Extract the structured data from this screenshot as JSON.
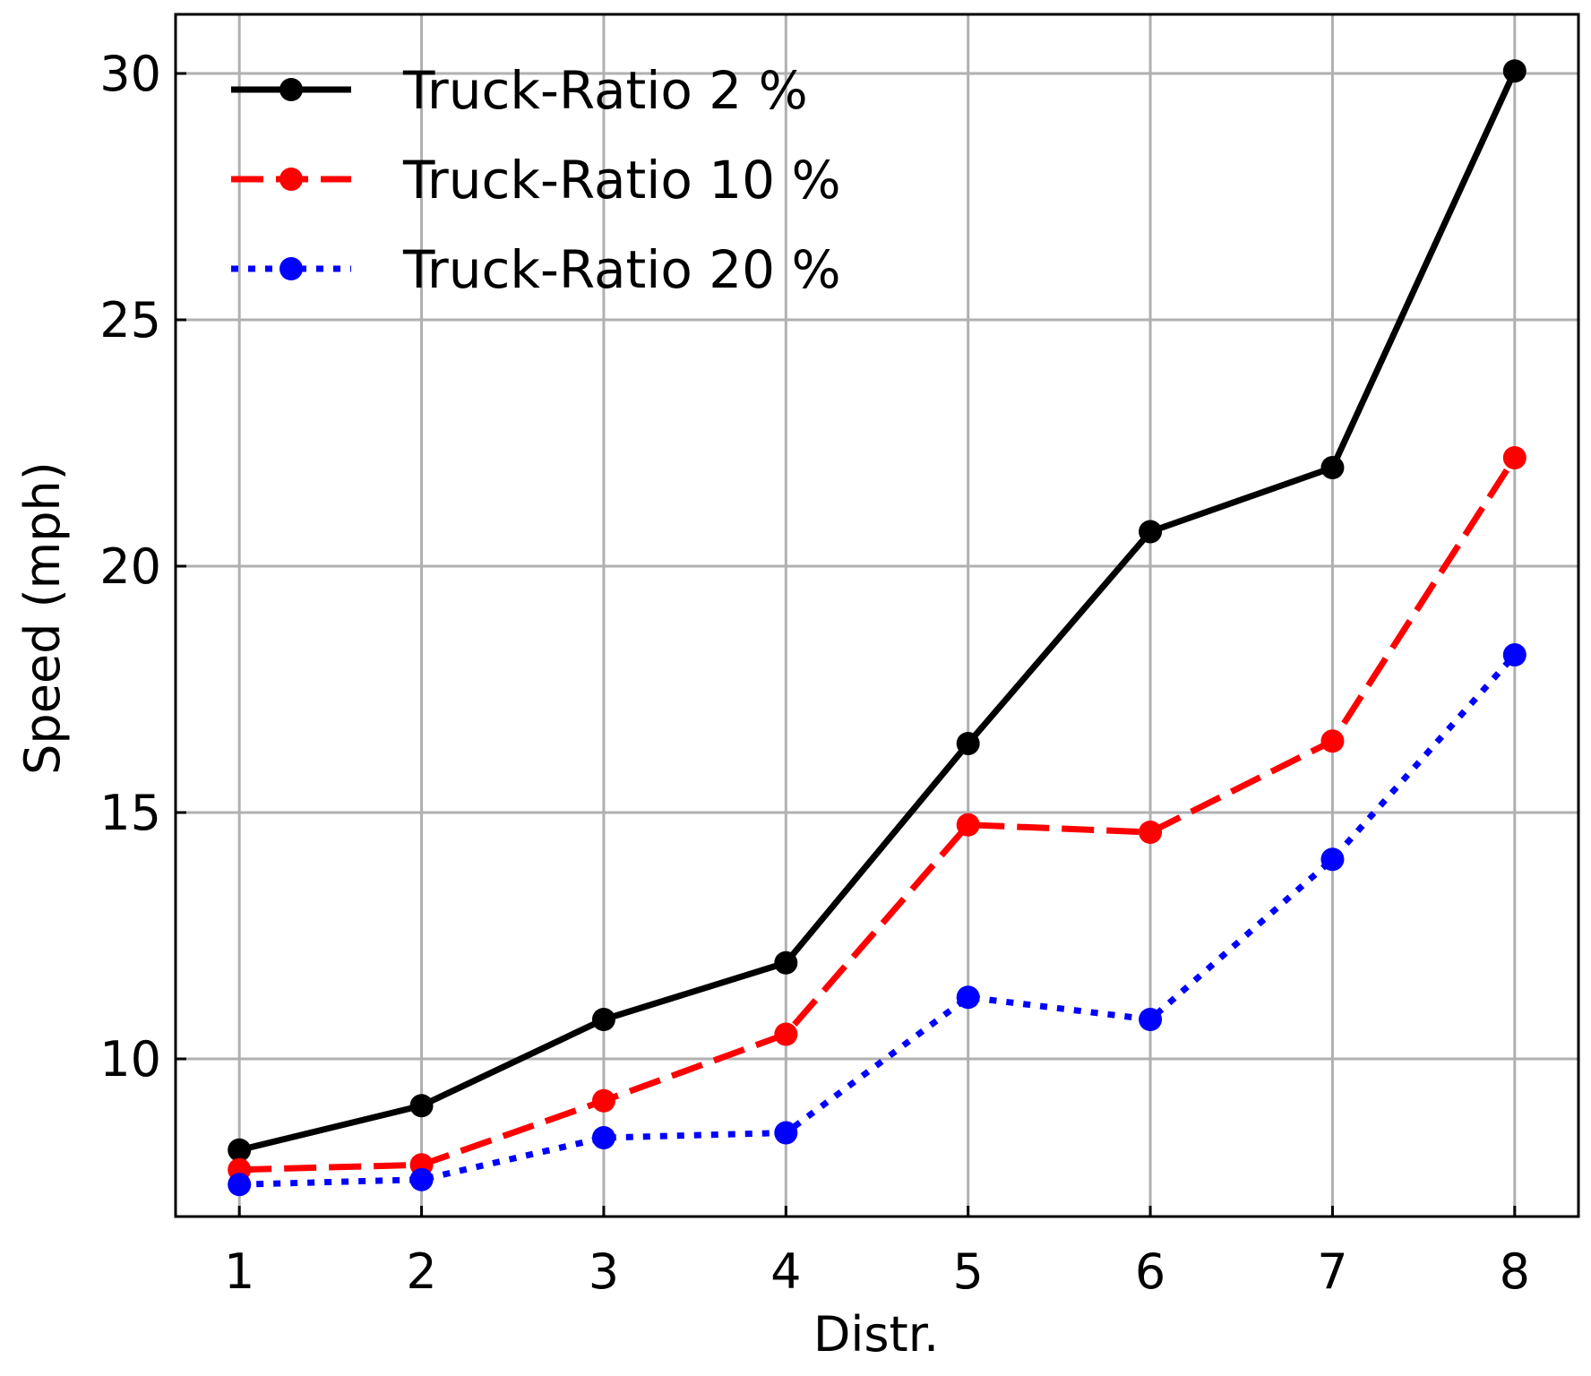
{
  "chart_data": {
    "type": "line",
    "title": "",
    "xlabel": "Distr.",
    "ylabel": "Speed (mph)",
    "x": [
      1,
      2,
      3,
      4,
      5,
      6,
      7,
      8
    ],
    "xlim": [
      0.65,
      8.35
    ],
    "ylim": [
      6.8,
      31.2
    ],
    "xticks": [
      "1",
      "2",
      "3",
      "4",
      "5",
      "6",
      "7",
      "8"
    ],
    "yticks": [
      "10",
      "15",
      "20",
      "25",
      "30"
    ],
    "grid": true,
    "legend_position": "top-left",
    "series": [
      {
        "name": "Truck-Ratio 2 %",
        "color": "#000000",
        "line_style": "solid",
        "values": [
          8.15,
          9.05,
          10.8,
          11.95,
          16.4,
          20.7,
          22.0,
          30.05
        ]
      },
      {
        "name": "Truck-Ratio 10 %",
        "color": "#ff0000",
        "line_style": "dashed",
        "values": [
          7.75,
          7.85,
          9.15,
          10.5,
          14.75,
          14.6,
          16.45,
          22.2
        ]
      },
      {
        "name": "Truck-Ratio 20 %",
        "color": "#0000ff",
        "line_style": "dotted",
        "values": [
          7.45,
          7.55,
          8.4,
          8.5,
          11.25,
          10.8,
          14.05,
          18.2
        ]
      }
    ]
  }
}
